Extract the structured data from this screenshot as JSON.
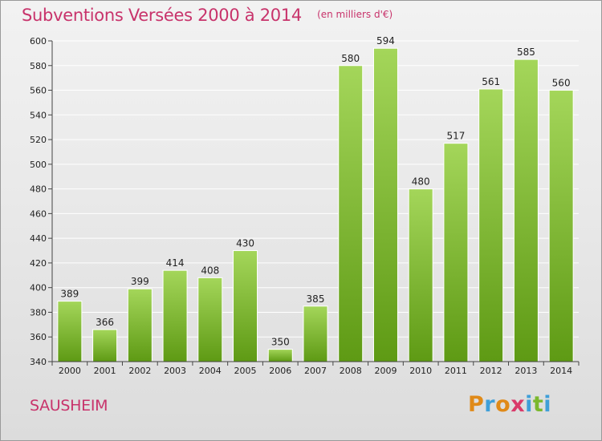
{
  "title": "Subventions Versées 2000 à 2014",
  "subtitle": "(en milliers d'€)",
  "entity": "SAUSHEIM",
  "logo": {
    "letters": [
      "P",
      "r",
      "o",
      "x",
      "i",
      "t",
      "i"
    ],
    "colors": [
      "#e08a18",
      "#3f9fd8",
      "#e08a18",
      "#d93a6a",
      "#3f9fd8",
      "#7bb82e",
      "#3f9fd8"
    ]
  },
  "colors": {
    "bar_top": "#a4d65a",
    "bar_bottom": "#5e9a14",
    "text_accent": "#c8336b",
    "grid": "#ffffff"
  },
  "chart_data": {
    "type": "bar",
    "title": "Subventions Versées 2000 à 2014",
    "subtitle": "(en milliers d'€)",
    "categories": [
      "2000",
      "2001",
      "2002",
      "2003",
      "2004",
      "2005",
      "2006",
      "2007",
      "2008",
      "2009",
      "2010",
      "2011",
      "2012",
      "2013",
      "2014"
    ],
    "values": [
      389,
      366,
      399,
      414,
      408,
      430,
      350,
      385,
      580,
      594,
      480,
      517,
      561,
      585,
      560
    ],
    "ylim": [
      340,
      600
    ],
    "yticks": [
      340,
      360,
      380,
      400,
      420,
      440,
      460,
      480,
      500,
      520,
      540,
      560,
      580,
      600
    ],
    "xlabel": "",
    "ylabel": "",
    "grid": true,
    "data_labels": true
  }
}
